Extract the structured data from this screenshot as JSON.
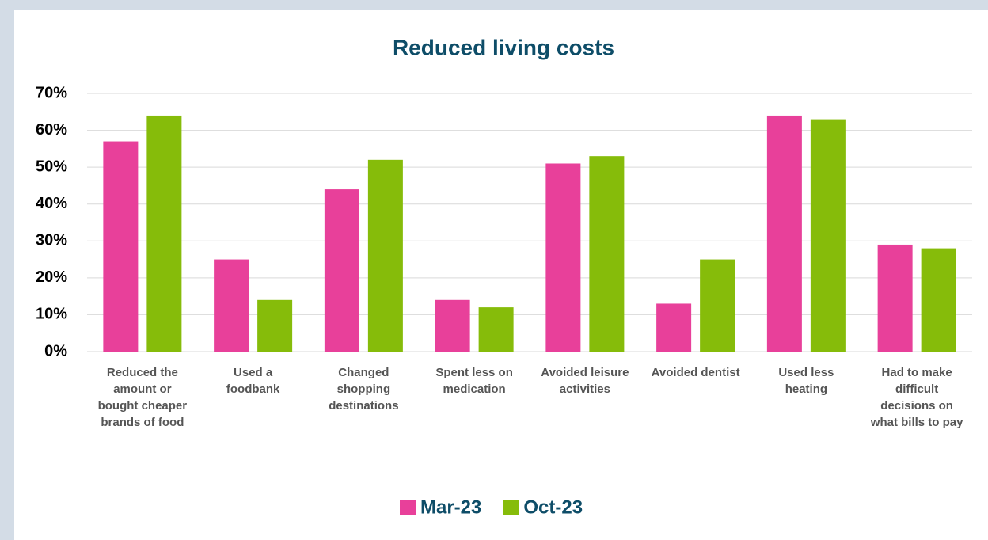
{
  "chart_data": {
    "type": "bar",
    "title": "Reduced living costs",
    "categories": [
      "Reduced the amount or bought cheaper brands of food",
      "Used a foodbank",
      "Changed shopping destinations",
      "Spent less on medication",
      "Avoided leisure activities",
      "Avoided dentist",
      "Used less heating",
      "Had to make difficult decisions on what bills to pay"
    ],
    "series": [
      {
        "name": "Mar-23",
        "color": "#e8409a",
        "values": [
          57,
          25,
          44,
          14,
          51,
          13,
          64,
          29
        ]
      },
      {
        "name": "Oct-23",
        "color": "#86bc0a",
        "values": [
          64,
          14,
          52,
          12,
          53,
          25,
          63,
          28
        ]
      }
    ],
    "ylim": [
      0,
      70
    ],
    "yticks": [
      {
        "value": 0,
        "label": "0%"
      },
      {
        "value": 10,
        "label": "10%"
      },
      {
        "value": 20,
        "label": "20%"
      },
      {
        "value": 30,
        "label": "30%"
      },
      {
        "value": 40,
        "label": "40%"
      },
      {
        "value": 50,
        "label": "50%"
      },
      {
        "value": 60,
        "label": "60%"
      },
      {
        "value": 70,
        "label": "70%"
      }
    ],
    "grid": true,
    "legend": "bottom"
  }
}
